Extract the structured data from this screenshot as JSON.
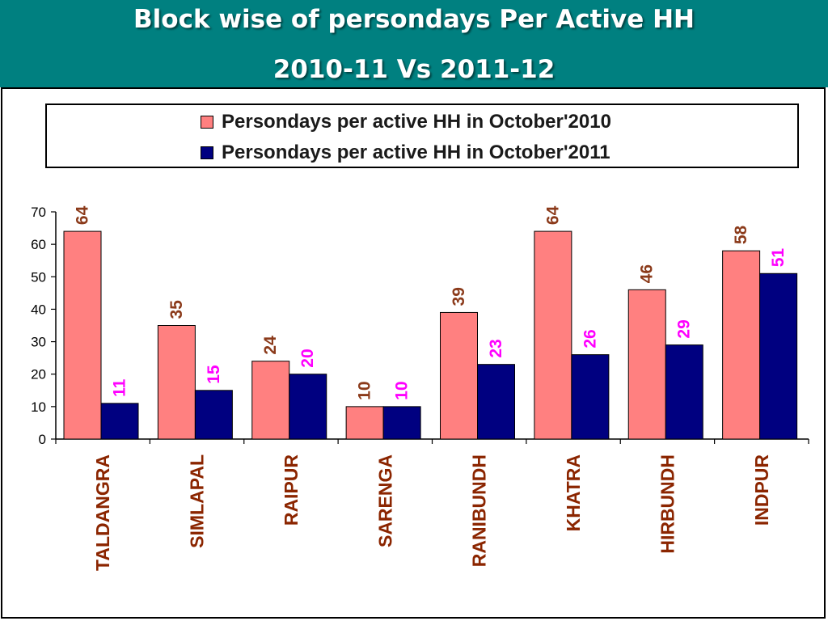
{
  "header": {
    "title_line1": "Block wise of persondays Per Active HH",
    "title_line2": "2010-11 Vs 2011-12",
    "background": "#008080"
  },
  "chart_data": {
    "type": "bar",
    "categories": [
      "TALDANGRA",
      "SIMLAPAL",
      "RAIPUR",
      "SARENGA",
      "RANIBUNDH",
      "KHATRA",
      "HIRBUNDH",
      "INDPUR"
    ],
    "series": [
      {
        "name": "Persondays per active HH in October'2010",
        "values": [
          64,
          35,
          24,
          10,
          39,
          64,
          46,
          58
        ],
        "color": "#FF8080",
        "label_color": "#8B3A1A"
      },
      {
        "name": "Persondays per active HH in October'2011",
        "values": [
          11,
          15,
          20,
          10,
          23,
          26,
          29,
          51
        ],
        "color": "#000080",
        "label_color": "#FF00FF"
      }
    ],
    "ylim": [
      0,
      70
    ],
    "yticks": [
      0,
      10,
      20,
      30,
      40,
      50,
      60,
      70
    ],
    "legend_position": "top",
    "grid": false,
    "category_label_color": "#8B2500"
  }
}
